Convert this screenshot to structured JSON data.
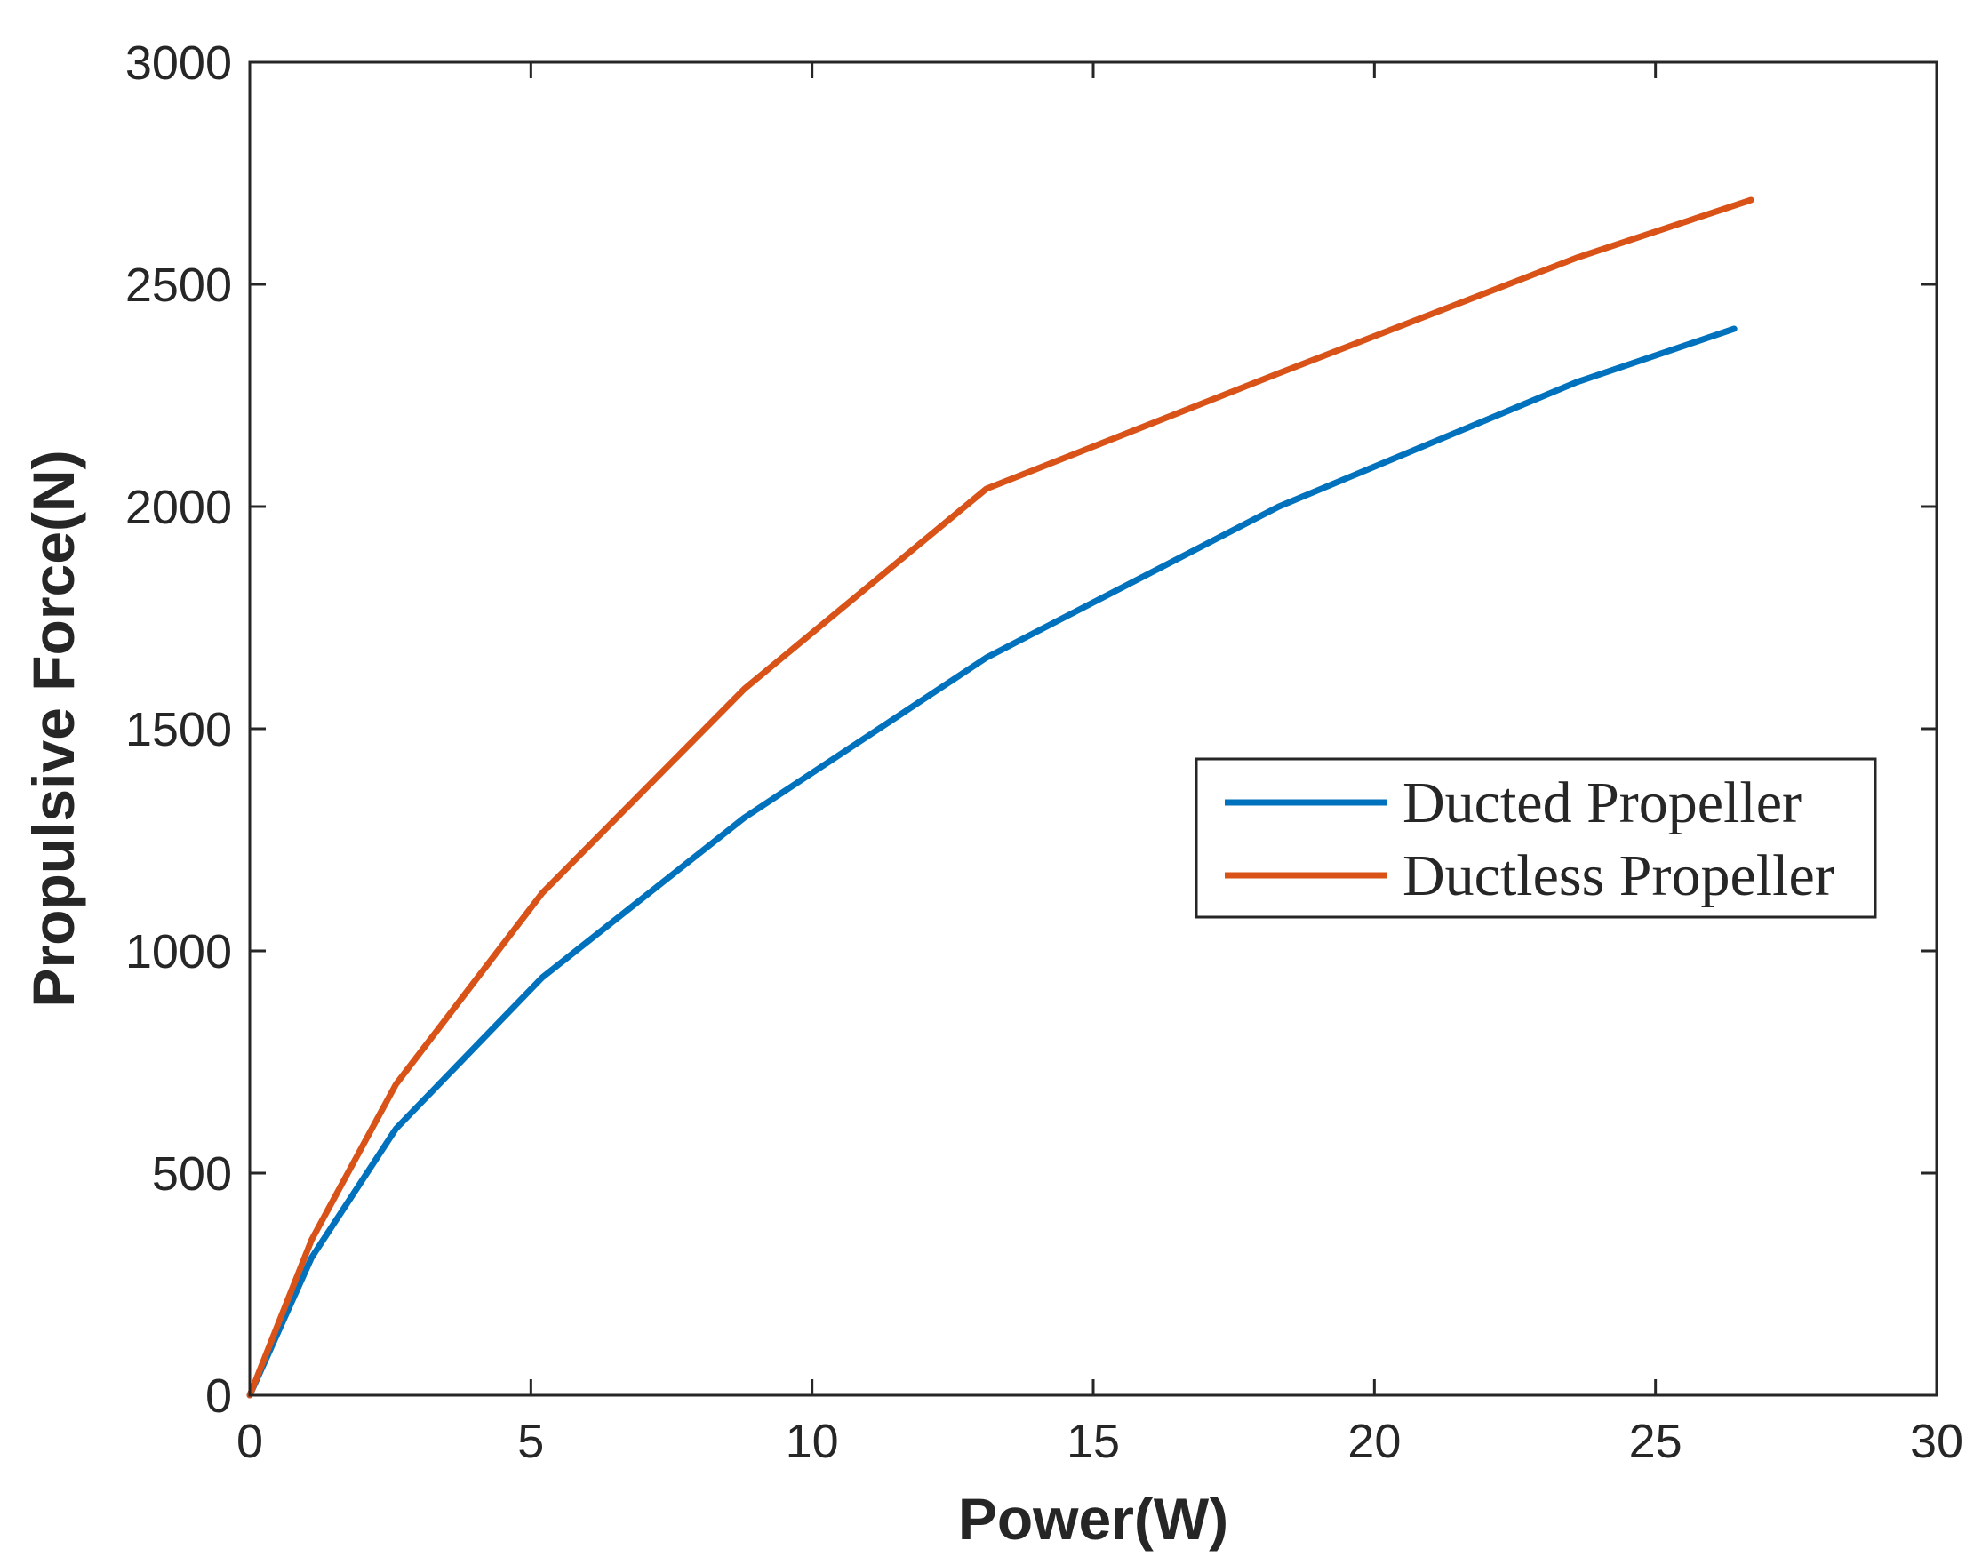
{
  "chart_data": {
    "type": "line",
    "title": "",
    "xlabel": "Power(W)",
    "ylabel": "Propulsive Force(N)",
    "xlim": [
      0,
      30
    ],
    "ylim": [
      0,
      3000
    ],
    "xticks": [
      0,
      5,
      10,
      15,
      20,
      25,
      30
    ],
    "yticks": [
      0,
      500,
      1000,
      1500,
      2000,
      2500,
      3000
    ],
    "grid": false,
    "legend_position": "center-right",
    "series": [
      {
        "name": "Ducted Propeller",
        "color": "#0072BD",
        "x": [
          0,
          1.1,
          2.6,
          5.2,
          8.8,
          13.1,
          18.3,
          23.6,
          26.4
        ],
        "y": [
          0,
          310,
          600,
          940,
          1300,
          1660,
          2000,
          2280,
          2400
        ]
      },
      {
        "name": "Ductless Propeller",
        "color": "#D95319",
        "x": [
          0,
          1.1,
          2.6,
          5.2,
          8.8,
          13.1,
          18.3,
          23.6,
          26.7
        ],
        "y": [
          0,
          350,
          700,
          1130,
          1590,
          2040,
          2300,
          2560,
          2690
        ]
      }
    ]
  }
}
